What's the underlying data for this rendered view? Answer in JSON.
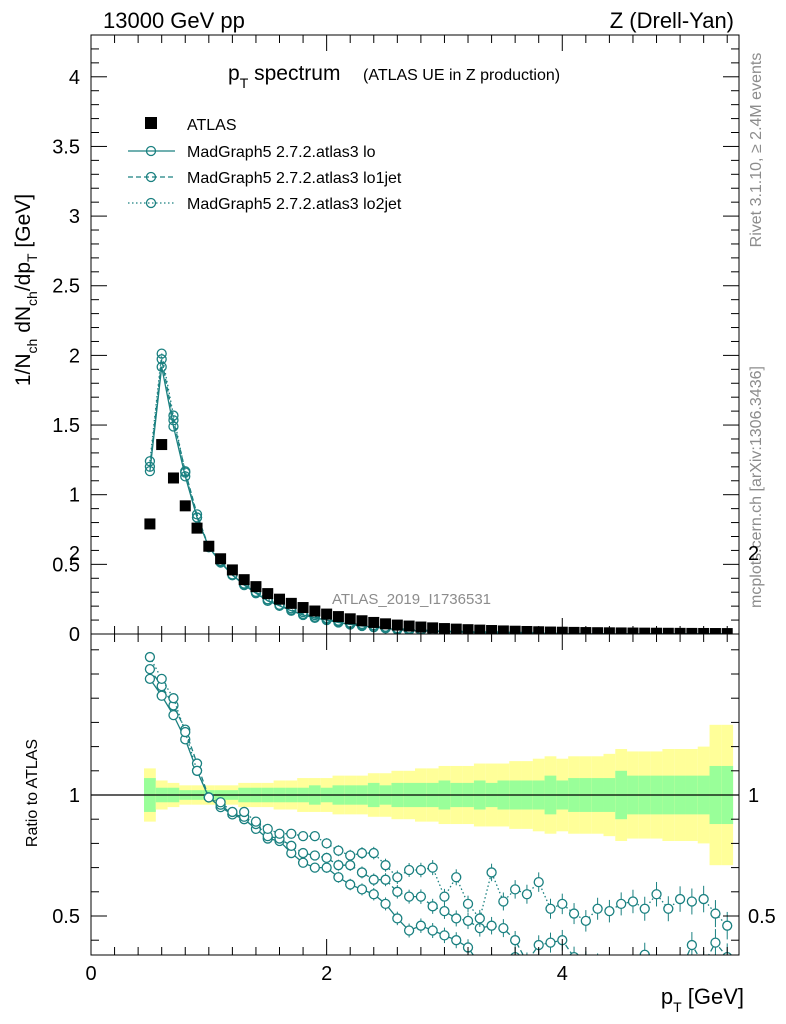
{
  "header": {
    "left": "13000 GeV pp",
    "right": "Z (Drell-Yan)"
  },
  "side": {
    "rivet": "Rivet 3.1.10, ≥ 2.4M events",
    "mcplots": "mcplots.cern.ch [arXiv:1306.3436]"
  },
  "chart_data": {
    "type": "scatter",
    "title": "p_T spectrum",
    "title_main": "p",
    "title_sub": "T",
    "title_rest": " spectrum",
    "subtitle": "(ATLAS UE in Z production)",
    "analysis_label": "ATLAS_2019_I1736531",
    "xlabel": "p_T [GeV]",
    "xlabel_main": "p",
    "xlabel_sub": "T",
    "xlabel_rest": " [GeV]",
    "ylabel": "1/N_ch dN_ch/dp_T [GeV]",
    "ratio_ylabel": "Ratio to ATLAS",
    "xlim": [
      0,
      5.5
    ],
    "ylim_main": [
      0,
      4.3
    ],
    "ylim_ratio": [
      0.33,
      2.2
    ],
    "xticks": [
      "0",
      "2",
      "4"
    ],
    "yticks_main": [
      "0",
      "0.5",
      "1",
      "1.5",
      "2",
      "2.5",
      "3",
      "3.5",
      "4"
    ],
    "yticks_ratio": [
      "0.5",
      "1",
      "2"
    ],
    "legend_position": "top-left",
    "legend": [
      "ATLAS",
      "MadGraph5 2.7.2.atlas3 lo",
      "MadGraph5 2.7.2.atlas3 lo1jet",
      "MadGraph5 2.7.2.atlas3 lo2jet"
    ],
    "colors": {
      "data": "#000000",
      "mc": "#1a8080",
      "band_inner": "#99ff99",
      "band_outer": "#ffff99"
    },
    "x": [
      0.5,
      0.6,
      0.7,
      0.8,
      0.9,
      1.0,
      1.1,
      1.2,
      1.3,
      1.4,
      1.5,
      1.6,
      1.7,
      1.8,
      1.9,
      2.0,
      2.1,
      2.2,
      2.3,
      2.4,
      2.5,
      2.6,
      2.7,
      2.8,
      2.9,
      3.0,
      3.1,
      3.2,
      3.3,
      3.4,
      3.5,
      3.6,
      3.7,
      3.8,
      3.9,
      4.0,
      4.1,
      4.2,
      4.3,
      4.4,
      4.5,
      4.6,
      4.7,
      4.8,
      4.9,
      5.0,
      5.1,
      5.2,
      5.3,
      5.4
    ],
    "ratio_band": {
      "inner": [
        0.07,
        0.03,
        0.03,
        0.02,
        0.02,
        0.02,
        0.02,
        0.02,
        0.03,
        0.03,
        0.03,
        0.03,
        0.03,
        0.03,
        0.04,
        0.03,
        0.04,
        0.04,
        0.04,
        0.05,
        0.04,
        0.05,
        0.05,
        0.05,
        0.05,
        0.06,
        0.05,
        0.05,
        0.06,
        0.05,
        0.06,
        0.06,
        0.06,
        0.06,
        0.08,
        0.06,
        0.07,
        0.07,
        0.07,
        0.07,
        0.1,
        0.08,
        0.08,
        0.08,
        0.08,
        0.08,
        0.08,
        0.08,
        0.12,
        0.12
      ],
      "outer": [
        0.11,
        0.06,
        0.05,
        0.04,
        0.04,
        0.04,
        0.04,
        0.04,
        0.05,
        0.05,
        0.05,
        0.06,
        0.06,
        0.07,
        0.07,
        0.07,
        0.08,
        0.08,
        0.08,
        0.09,
        0.09,
        0.1,
        0.1,
        0.11,
        0.11,
        0.12,
        0.12,
        0.12,
        0.13,
        0.13,
        0.13,
        0.14,
        0.14,
        0.15,
        0.16,
        0.15,
        0.16,
        0.16,
        0.16,
        0.17,
        0.19,
        0.18,
        0.18,
        0.18,
        0.19,
        0.19,
        0.19,
        0.2,
        0.29,
        0.29
      ]
    },
    "series": [
      {
        "name": "ATLAS",
        "marker": "square",
        "values": [
          0.79,
          1.36,
          1.12,
          0.92,
          0.76,
          0.63,
          0.54,
          0.46,
          0.39,
          0.34,
          0.29,
          0.25,
          0.22,
          0.19,
          0.165,
          0.143,
          0.125,
          0.109,
          0.095,
          0.083,
          0.073,
          0.064,
          0.057,
          0.05,
          0.044,
          0.039,
          0.035,
          0.031,
          0.028,
          0.025,
          0.022,
          0.02,
          0.018,
          0.016,
          0.014,
          0.0128,
          0.0115,
          0.0103,
          0.0093,
          0.0084,
          0.0076,
          0.0069,
          0.0062,
          0.0056,
          0.0051,
          0.0046,
          0.0042,
          0.0038,
          0.0034,
          0.0031
        ]
      },
      {
        "name": "MadGraph5 2.7.2.atlas3 lo",
        "style": "solid",
        "ratio": [
          1.48,
          1.41,
          1.33,
          1.23,
          1.1,
          0.99,
          0.95,
          0.92,
          0.9,
          0.86,
          0.82,
          0.81,
          0.76,
          0.72,
          0.7,
          0.7,
          0.66,
          0.63,
          0.61,
          0.59,
          0.55,
          0.49,
          0.44,
          0.46,
          0.44,
          0.42,
          0.4,
          0.37,
          0.3,
          0.31,
          0.3,
          0.33,
          0.28,
          0.22,
          0.2,
          0.18,
          0.15,
          0.17,
          0.12,
          0.13,
          0.1,
          0.12,
          0.09,
          0.1,
          0.08,
          0.09,
          0.07,
          0.07,
          0.06,
          0.06
        ]
      },
      {
        "name": "MadGraph5 2.7.2.atlas3 lo1jet",
        "style": "dashed",
        "ratio": [
          1.52,
          1.45,
          1.37,
          1.27,
          1.13,
          0.99,
          0.96,
          0.92,
          0.91,
          0.88,
          0.83,
          0.82,
          0.79,
          0.76,
          0.75,
          0.74,
          0.71,
          0.71,
          0.68,
          0.65,
          0.65,
          0.6,
          0.58,
          0.58,
          0.54,
          0.52,
          0.49,
          0.48,
          0.45,
          0.46,
          0.45,
          0.4,
          0.31,
          0.38,
          0.39,
          0.4,
          0.33,
          0.31,
          0.3,
          0.29,
          0.29,
          0.28,
          0.34,
          0.26,
          0.28,
          0.27,
          0.38,
          0.3,
          0.39,
          0.33
        ]
      },
      {
        "name": "MadGraph5 2.7.2.atlas3 lo2jet",
        "style": "dotted",
        "ratio": [
          1.57,
          1.48,
          1.4,
          1.26,
          1.1,
          0.99,
          0.97,
          0.93,
          0.93,
          0.89,
          0.86,
          0.84,
          0.84,
          0.83,
          0.83,
          0.8,
          0.77,
          0.75,
          0.76,
          0.76,
          0.71,
          0.66,
          0.69,
          0.69,
          0.7,
          0.58,
          0.66,
          0.55,
          0.49,
          0.68,
          0.56,
          0.61,
          0.59,
          0.64,
          0.53,
          0.55,
          0.51,
          0.48,
          0.53,
          0.52,
          0.55,
          0.56,
          0.53,
          0.59,
          0.53,
          0.57,
          0.56,
          0.57,
          0.51,
          0.46
        ]
      }
    ]
  }
}
